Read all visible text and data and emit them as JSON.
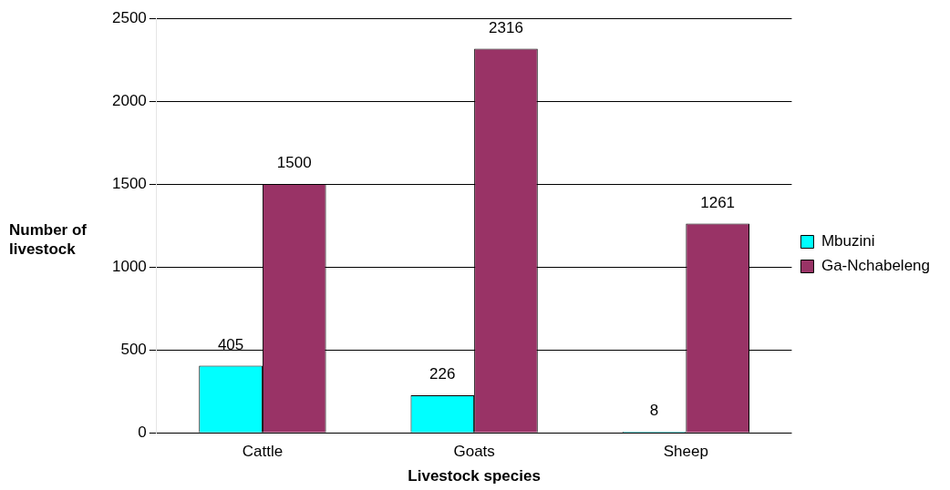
{
  "chart_data": {
    "type": "bar",
    "xlabel": "Livestock species",
    "ylabel": "Number of livestock",
    "categories": [
      "Cattle",
      "Goats",
      "Sheep"
    ],
    "series": [
      {
        "name": "Mbuzini",
        "color": "#00ffff",
        "values": [
          405,
          226,
          8
        ]
      },
      {
        "name": "Ga-Nchabeleng",
        "color": "#993366",
        "values": [
          1500,
          2316,
          1261
        ]
      }
    ],
    "ylim": [
      0,
      2500
    ],
    "yticks": [
      0,
      500,
      1000,
      1500,
      2000,
      2500
    ],
    "grid": "y",
    "legend": "right",
    "data_labels": true
  }
}
